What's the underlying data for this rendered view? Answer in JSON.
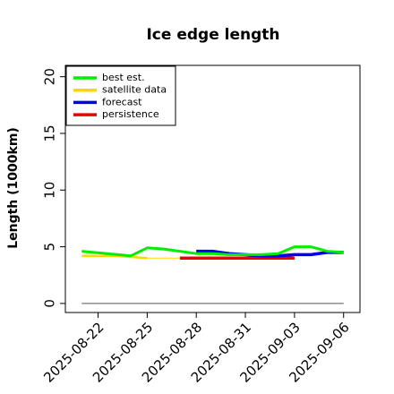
{
  "chart_data": {
    "type": "line",
    "title": "Ice edge length",
    "xlabel": "",
    "ylabel": "Length (1000km)",
    "ylim": [
      -0.8,
      21
    ],
    "xlim": [
      "2025-08-20",
      "2025-09-07"
    ],
    "yticks": [
      0,
      5,
      10,
      15,
      20
    ],
    "xticks": [
      {
        "label": "2025-08-22",
        "date": "2025-08-22",
        "color": "#000000"
      },
      {
        "label": "2025-08-25",
        "date": "2025-08-25",
        "color": "#000000"
      },
      {
        "label": "2025-08-28",
        "date": "2025-08-28",
        "color": "#228B22"
      },
      {
        "label": "2025-08-31",
        "date": "2025-08-31",
        "color": "#000000"
      },
      {
        "label": "2025-09-03",
        "date": "2025-09-03",
        "color": "#000000"
      },
      {
        "label": "2025-09-06",
        "date": "2025-09-06",
        "color": "#000000"
      }
    ],
    "legend_position": "top-left",
    "series": [
      {
        "name": "best est.",
        "color": "#00ee00",
        "width": 3,
        "points": [
          {
            "x": "2025-08-21",
            "y": 4.6
          },
          {
            "x": "2025-08-24",
            "y": 4.2
          },
          {
            "x": "2025-08-25",
            "y": 4.9
          },
          {
            "x": "2025-08-26",
            "y": 4.8
          },
          {
            "x": "2025-08-27",
            "y": 4.6
          },
          {
            "x": "2025-08-28",
            "y": 4.4
          },
          {
            "x": "2025-08-29",
            "y": 4.4
          },
          {
            "x": "2025-08-30",
            "y": 4.3
          },
          {
            "x": "2025-08-31",
            "y": 4.3
          },
          {
            "x": "2025-09-01",
            "y": 4.3
          },
          {
            "x": "2025-09-02",
            "y": 4.4
          },
          {
            "x": "2025-09-03",
            "y": 5.0
          },
          {
            "x": "2025-09-04",
            "y": 5.0
          },
          {
            "x": "2025-09-05",
            "y": 4.6
          },
          {
            "x": "2025-09-06",
            "y": 4.5
          }
        ]
      },
      {
        "name": "satellite data",
        "color": "#ffd700",
        "width": 2.5,
        "points": [
          {
            "x": "2025-08-21",
            "y": 4.2
          },
          {
            "x": "2025-08-22",
            "y": 4.2
          },
          {
            "x": "2025-08-23",
            "y": 4.2
          },
          {
            "x": "2025-08-24",
            "y": 4.1
          },
          {
            "x": "2025-08-25",
            "y": 4.0
          }
        ]
      },
      {
        "name": "satellite data (thin)",
        "color": "#ffd700",
        "width": 1,
        "points": [
          {
            "x": "2025-08-25",
            "y": 4.0
          },
          {
            "x": "2025-09-03",
            "y": 4.0
          }
        ]
      },
      {
        "name": "forecast",
        "color": "#0000ee",
        "width": 3.5,
        "points": [
          {
            "x": "2025-08-28",
            "y": 4.6
          },
          {
            "x": "2025-08-29",
            "y": 4.6
          },
          {
            "x": "2025-08-30",
            "y": 4.4
          },
          {
            "x": "2025-08-31",
            "y": 4.3
          },
          {
            "x": "2025-09-01",
            "y": 4.2
          },
          {
            "x": "2025-09-02",
            "y": 4.2
          },
          {
            "x": "2025-09-03",
            "y": 4.3
          },
          {
            "x": "2025-09-04",
            "y": 4.3
          },
          {
            "x": "2025-09-05",
            "y": 4.5
          },
          {
            "x": "2025-09-06",
            "y": 4.5
          }
        ]
      },
      {
        "name": "persistence",
        "color": "#ee0000",
        "width": 3.5,
        "points": [
          {
            "x": "2025-08-27",
            "y": 4.0
          },
          {
            "x": "2025-09-03",
            "y": 4.0
          }
        ]
      },
      {
        "name": "zero line",
        "color": "#555555",
        "width": 1,
        "points": [
          {
            "x": "2025-08-21",
            "y": 0
          },
          {
            "x": "2025-09-06",
            "y": 0
          }
        ]
      }
    ],
    "legend": [
      {
        "label": "best est.",
        "color": "#00ee00"
      },
      {
        "label": "satellite data",
        "color": "#ffd700"
      },
      {
        "label": "forecast",
        "color": "#0000ee"
      },
      {
        "label": "persistence",
        "color": "#ee0000"
      }
    ]
  }
}
